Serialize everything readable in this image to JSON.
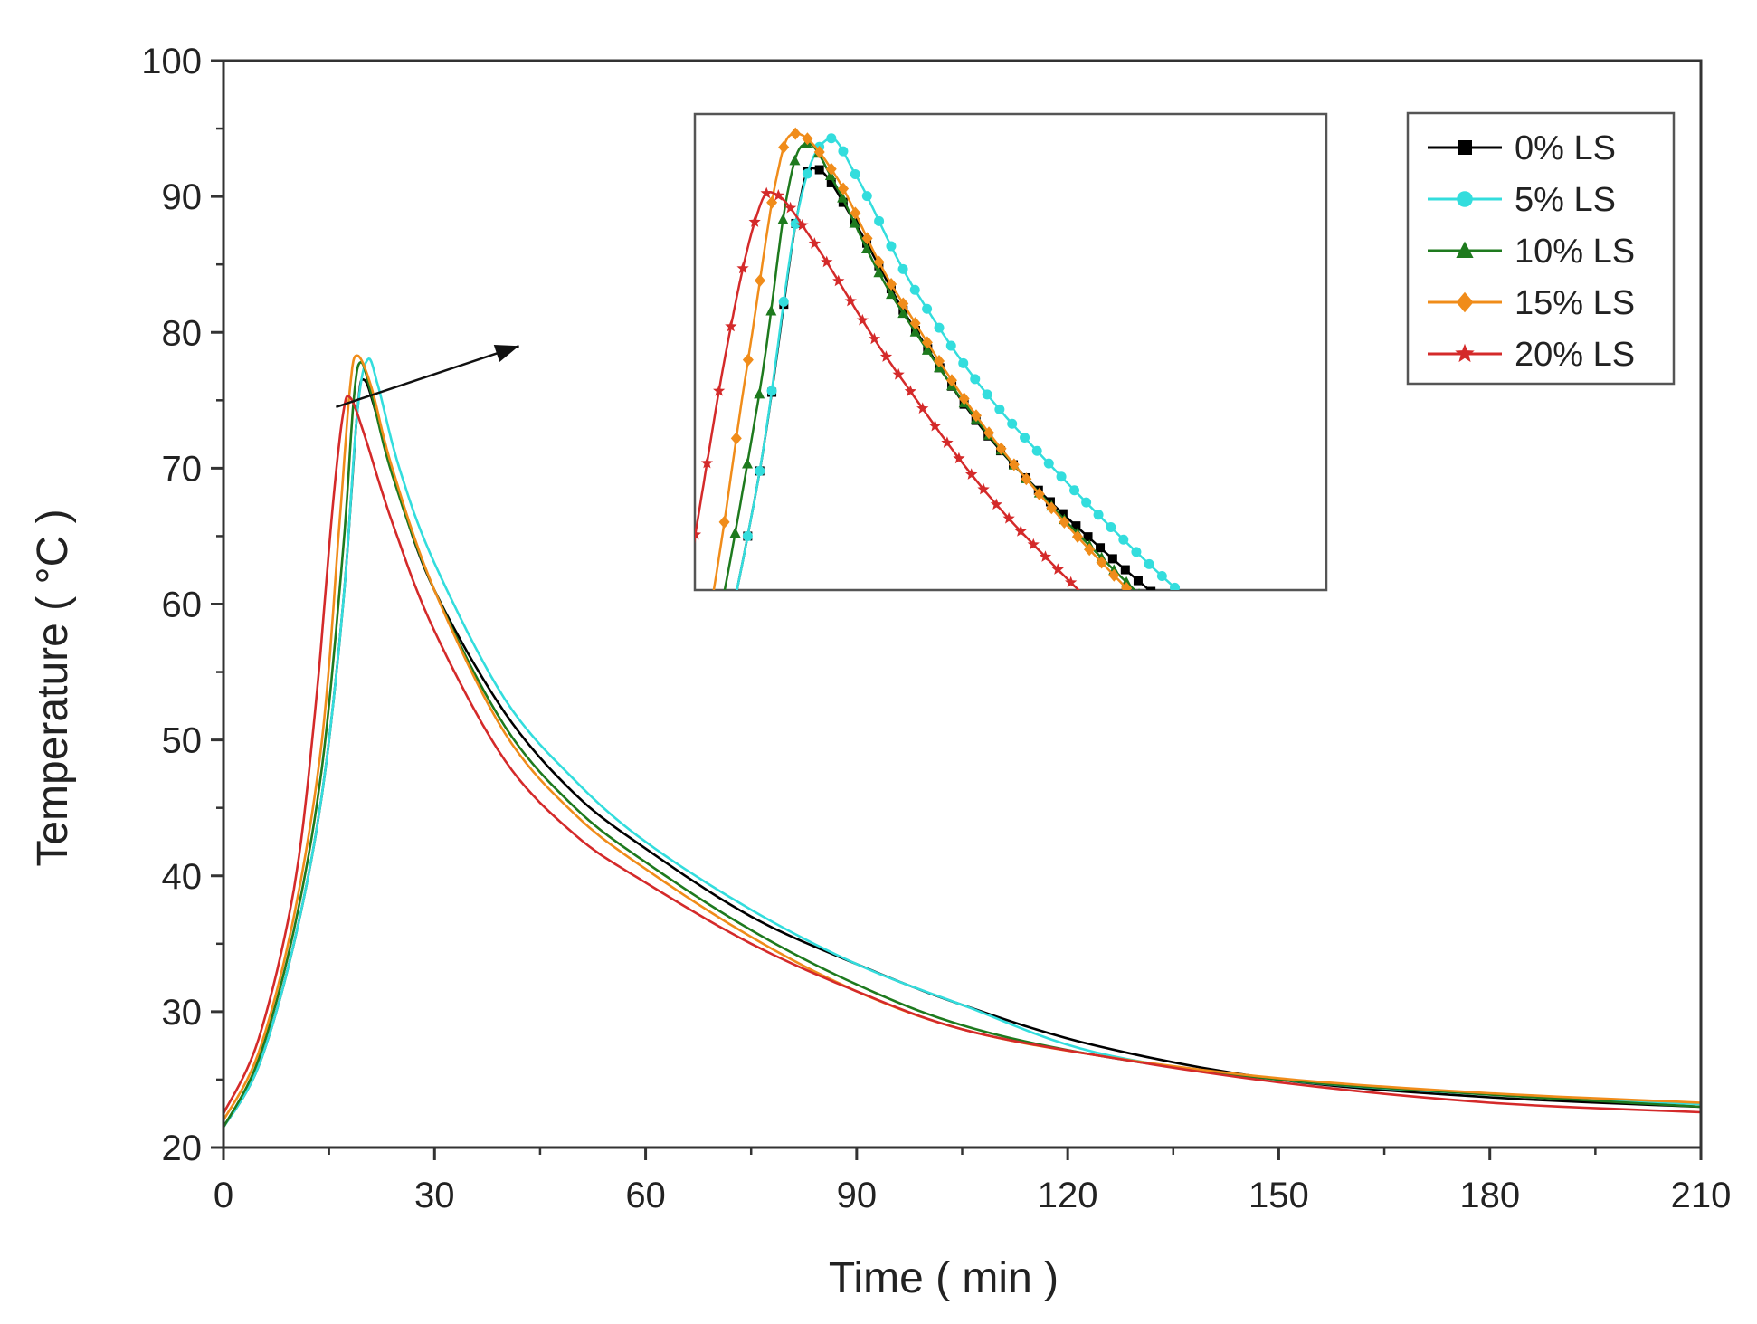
{
  "chart_data": {
    "type": "line",
    "title": "",
    "xlabel": "Time ( min )",
    "ylabel": "Temperature ( °C )",
    "xlim": [
      0,
      210
    ],
    "ylim": [
      20,
      100
    ],
    "xticks": [
      0,
      30,
      60,
      90,
      120,
      150,
      180,
      210
    ],
    "yticks": [
      20,
      30,
      40,
      50,
      60,
      70,
      80,
      90,
      100
    ],
    "xtick_labels": [
      "0",
      "30",
      "60",
      "90",
      "120",
      "150",
      "180",
      "210"
    ],
    "ytick_labels": [
      "20",
      "30",
      "40",
      "50",
      "60",
      "70",
      "80",
      "90",
      "100"
    ],
    "legend_position": "top-right",
    "series": [
      {
        "name": "0% LS",
        "color": "#000000",
        "marker": "square",
        "x": [
          0,
          5,
          10,
          14,
          17,
          19,
          20,
          22,
          25,
          30,
          40,
          50,
          60,
          75,
          90,
          105,
          124,
          150,
          180,
          210
        ],
        "y": [
          21.5,
          26,
          35,
          46,
          60,
          74,
          76.5,
          73.5,
          68,
          61,
          52,
          46,
          42,
          37,
          33.5,
          30.5,
          27.5,
          25,
          23.7,
          23
        ]
      },
      {
        "name": "5% LS",
        "color": "#33dddd",
        "marker": "circle",
        "x": [
          0,
          5,
          10,
          14,
          17,
          19,
          20.5,
          22,
          25,
          30,
          40,
          50,
          60,
          75,
          90,
          105,
          124,
          150,
          180,
          210
        ],
        "y": [
          21.5,
          26,
          35,
          46,
          60,
          74,
          78,
          76,
          70,
          63,
          53,
          47,
          42.5,
          37.5,
          33.5,
          30.5,
          27,
          25,
          23.9,
          23.2
        ]
      },
      {
        "name": "10% LS",
        "color": "#1e7a1e",
        "marker": "triangle",
        "x": [
          0,
          5,
          10,
          14,
          17,
          18.5,
          19.5,
          21,
          24,
          30,
          40,
          50,
          60,
          75,
          90,
          105,
          124,
          150,
          180,
          210
        ],
        "y": [
          21.5,
          26.5,
          36,
          48,
          64,
          75,
          77.8,
          75.5,
          69.5,
          61,
          51,
          45,
          41,
          36,
          32,
          29,
          26.8,
          25,
          23.9,
          23
        ]
      },
      {
        "name": "15% LS",
        "color": "#f08c1a",
        "marker": "diamond",
        "x": [
          0,
          5,
          10,
          14,
          16.5,
          18,
          19,
          21,
          24,
          30,
          40,
          50,
          60,
          75,
          90,
          105,
          124,
          150,
          180,
          210
        ],
        "y": [
          22,
          27,
          37,
          50,
          66,
          76,
          78.3,
          76,
          70,
          61,
          50.5,
          44.5,
          40.5,
          35.5,
          31.5,
          28.7,
          26.8,
          25.1,
          24,
          23.3
        ]
      },
      {
        "name": "20% LS",
        "color": "#d42a2a",
        "marker": "star",
        "x": [
          0,
          5,
          10,
          13,
          15.5,
          17,
          18,
          20,
          24,
          30,
          40,
          50,
          60,
          75,
          90,
          105,
          124,
          150,
          180,
          210
        ],
        "y": [
          22.5,
          28,
          39,
          52,
          67,
          74,
          75.2,
          72.5,
          66,
          58,
          48.5,
          43,
          39.5,
          35,
          31.5,
          28.7,
          26.8,
          24.8,
          23.3,
          22.6
        ]
      }
    ],
    "inset": {
      "description": "zoomed view of curve peaks",
      "arrow_from": [
        16,
        74.5
      ],
      "arrow_to": [
        42,
        79
      ]
    }
  }
}
